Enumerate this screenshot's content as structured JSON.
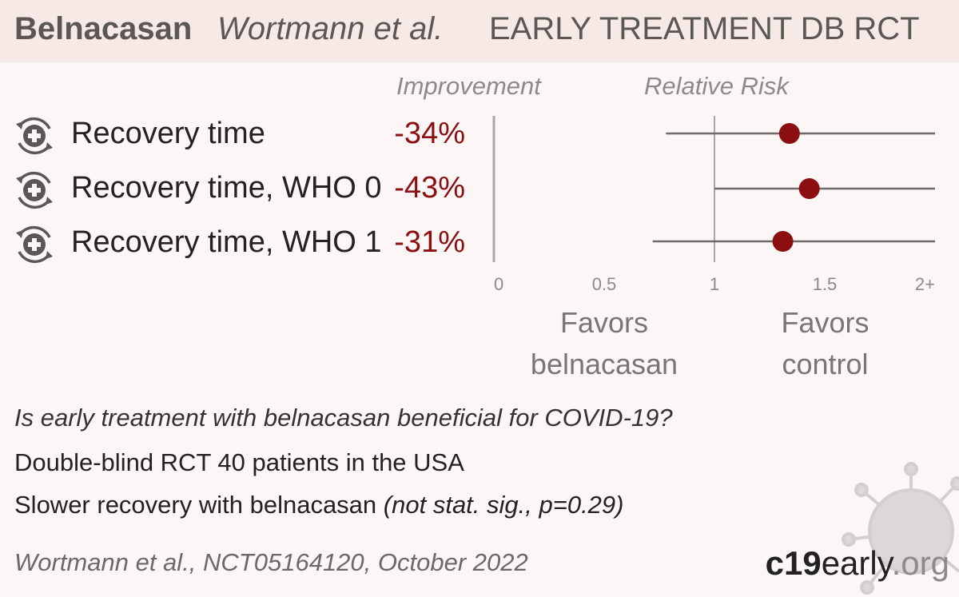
{
  "header": {
    "drug": "Belnacasan",
    "authors": "Wortmann et al.",
    "type": "EARLY TREATMENT  DB RCT"
  },
  "columns": {
    "improvement": "Improvement",
    "relative_risk": "Relative Risk"
  },
  "chart_data": {
    "type": "forest",
    "x_axis": {
      "ticks": [
        0,
        0.5,
        1,
        1.5,
        2
      ],
      "tick_labels": [
        "0",
        "0.5",
        "1",
        "1.5",
        "2+"
      ],
      "range": [
        0,
        2
      ]
    },
    "reference_line": 1,
    "rows": [
      {
        "label": "Recovery time",
        "improvement": "-34%",
        "rr": 1.34,
        "ci_low": 0.78,
        "ci_high": 2.0
      },
      {
        "label": "Recovery time, WHO 0",
        "improvement": "-43%",
        "rr": 1.43,
        "ci_low": 1.0,
        "ci_high": 2.0
      },
      {
        "label": "Recovery time, WHO 1",
        "improvement": "-31%",
        "rr": 1.31,
        "ci_low": 0.72,
        "ci_high": 2.0
      }
    ],
    "favors_left": "Favors belnacasan",
    "favors_right": "Favors control",
    "colors": {
      "point": "#8b0f10",
      "line": "#6e6a6a",
      "axis": "#a9a5a5"
    }
  },
  "summary": {
    "question": "Is early treatment with belnacasan beneficial for COVID-19?",
    "design": "Double-blind RCT 40 patients in the USA",
    "result": "Slower recovery with belnacasan",
    "result_note": "(not stat. sig., p=0.29)"
  },
  "citation": "Wortmann et al., NCT05164120, October 2022",
  "brand": {
    "part1": "c19",
    "part2": "early",
    "part3": ".org"
  }
}
